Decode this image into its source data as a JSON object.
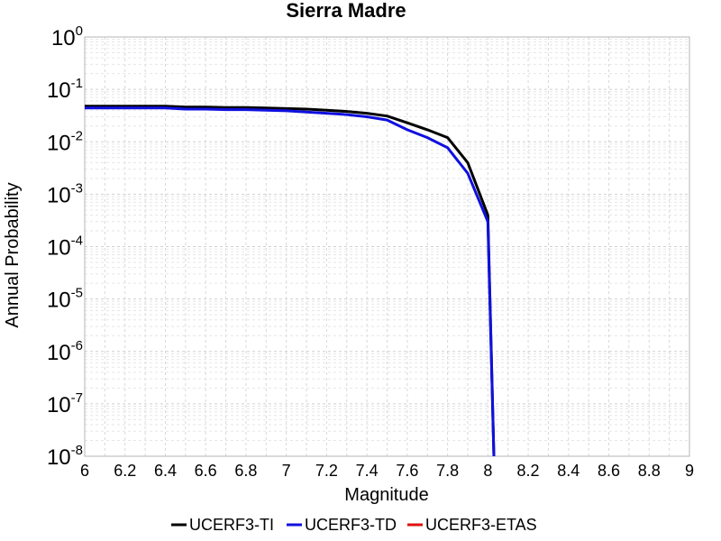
{
  "chart_data": {
    "type": "line",
    "title": "Sierra Madre",
    "xlabel": "Magnitude",
    "ylabel": "Annual Probability",
    "xlim": [
      6,
      9
    ],
    "ylim": [
      1e-08,
      1
    ],
    "yscale": "log",
    "grid": true,
    "legend_position": "bottom",
    "x_ticks": [
      "6",
      "6.2",
      "6.4",
      "6.6",
      "6.8",
      "7",
      "7.2",
      "7.4",
      "7.6",
      "7.8",
      "8",
      "8.2",
      "8.4",
      "8.6",
      "8.8",
      "9"
    ],
    "y_ticks": [
      {
        "base": "10",
        "exp": "0"
      },
      {
        "base": "10",
        "exp": "-1"
      },
      {
        "base": "10",
        "exp": "-2"
      },
      {
        "base": "10",
        "exp": "-3"
      },
      {
        "base": "10",
        "exp": "-4"
      },
      {
        "base": "10",
        "exp": "-5"
      },
      {
        "base": "10",
        "exp": "-6"
      },
      {
        "base": "10",
        "exp": "-7"
      },
      {
        "base": "10",
        "exp": "-8"
      }
    ],
    "series": [
      {
        "name": "UCERF3-TI",
        "color": "#000000",
        "x": [
          6.0,
          6.1,
          6.2,
          6.3,
          6.4,
          6.5,
          6.6,
          6.7,
          6.8,
          6.9,
          7.0,
          7.1,
          7.2,
          7.3,
          7.4,
          7.5,
          7.6,
          7.7,
          7.8,
          7.9,
          8.0,
          8.03
        ],
        "y": [
          0.048,
          0.048,
          0.048,
          0.048,
          0.048,
          0.046,
          0.046,
          0.045,
          0.045,
          0.044,
          0.043,
          0.042,
          0.04,
          0.038,
          0.035,
          0.031,
          0.023,
          0.017,
          0.012,
          0.004,
          0.0004,
          1e-08
        ]
      },
      {
        "name": "UCERF3-TD",
        "color": "#1010e0",
        "x": [
          6.0,
          6.1,
          6.2,
          6.3,
          6.4,
          6.5,
          6.6,
          6.7,
          6.8,
          6.9,
          7.0,
          7.1,
          7.2,
          7.3,
          7.4,
          7.5,
          7.6,
          7.7,
          7.8,
          7.9,
          8.0,
          8.03
        ],
        "y": [
          0.044,
          0.044,
          0.044,
          0.044,
          0.044,
          0.042,
          0.042,
          0.041,
          0.041,
          0.04,
          0.039,
          0.037,
          0.035,
          0.033,
          0.03,
          0.026,
          0.017,
          0.012,
          0.0077,
          0.0025,
          0.0003,
          1e-08
        ]
      },
      {
        "name": "UCERF3-ETAS",
        "color": "#e01010",
        "x": [],
        "y": []
      }
    ]
  }
}
